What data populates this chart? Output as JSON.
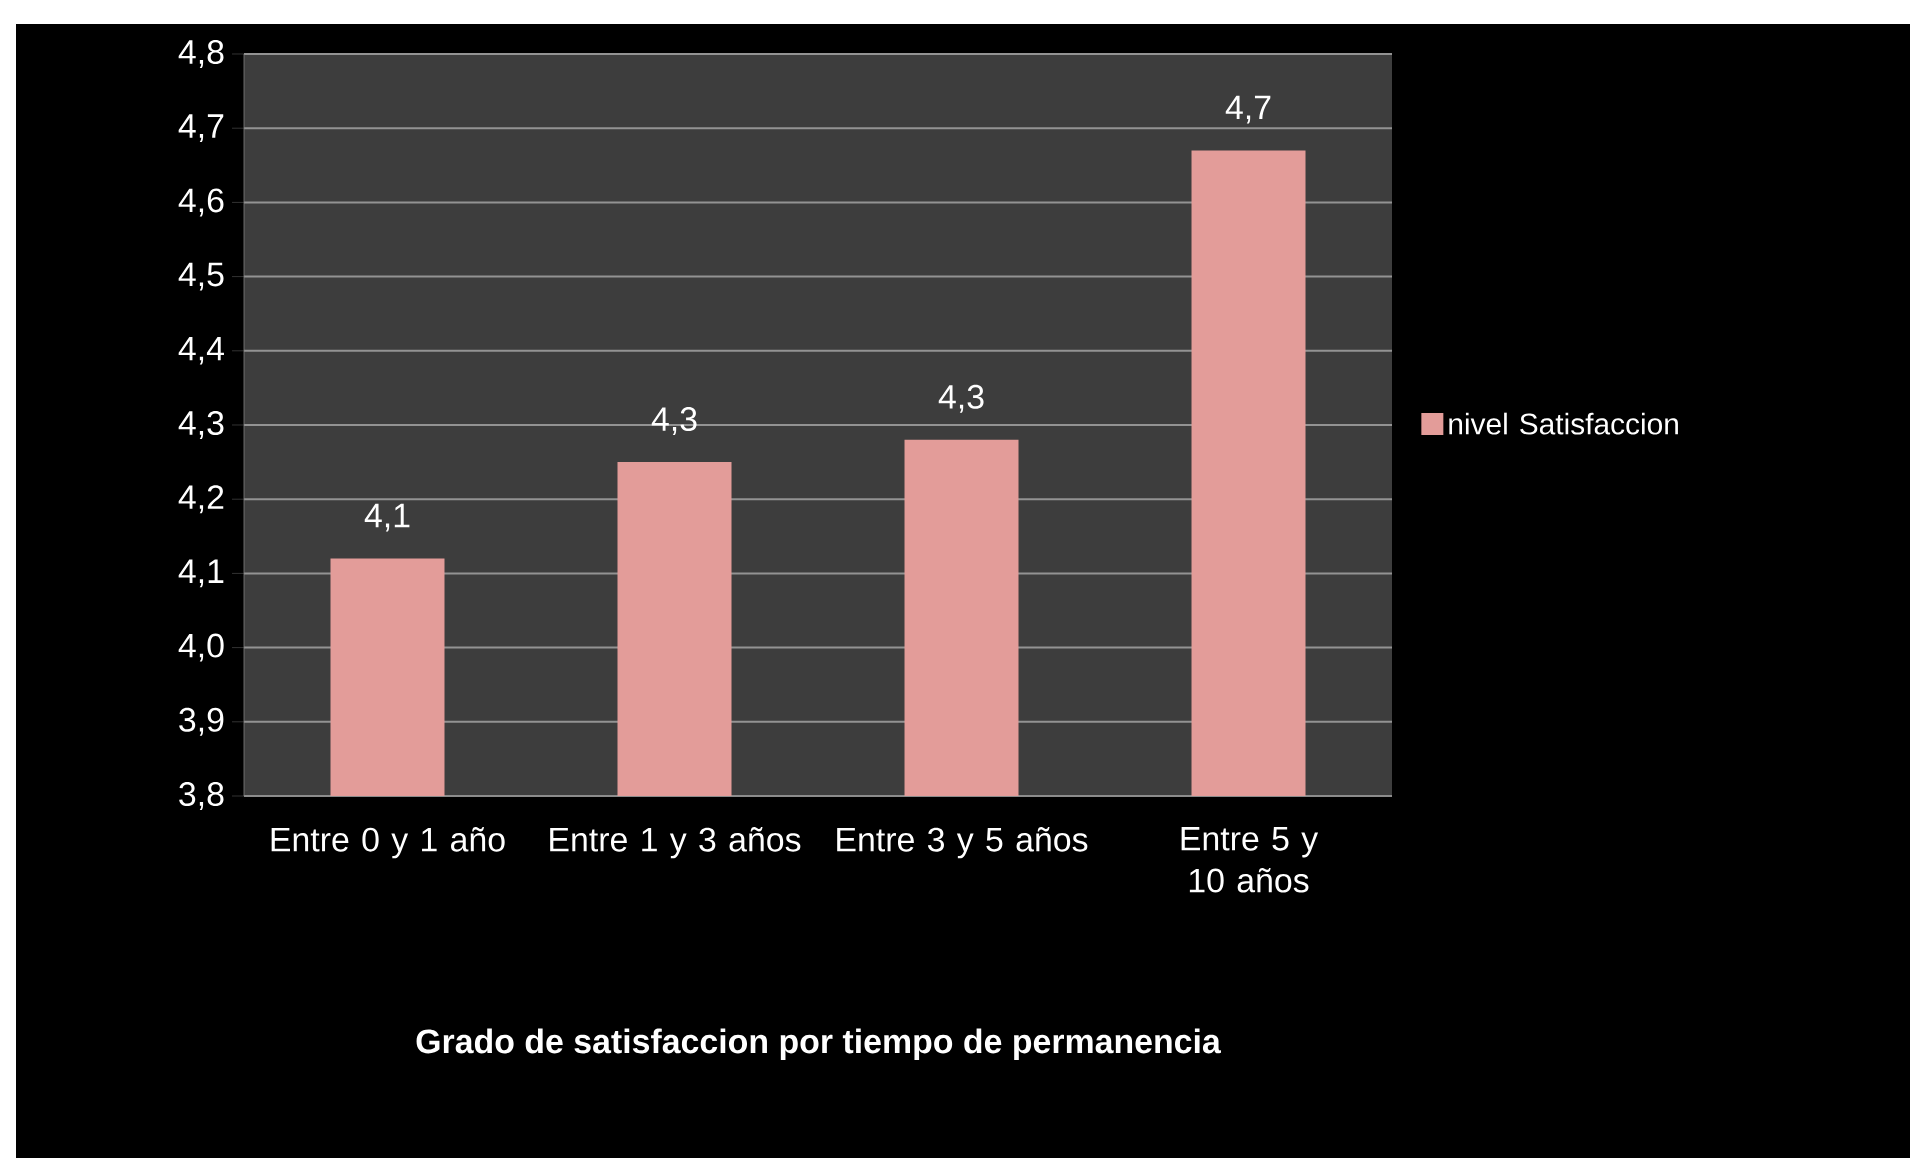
{
  "chart_data": {
    "type": "bar",
    "title": "Grado de satisfaccion por tiempo de permanencia",
    "categories": [
      "Entre 0 y 1 año",
      "Entre 1 y 3 años",
      "Entre 3 y 5 años",
      "Entre 5 y 10 años"
    ],
    "series": [
      {
        "name": "nivel Satisfaccion",
        "color": "#e39c99",
        "values": [
          4.12,
          4.25,
          4.28,
          4.67
        ],
        "value_labels": [
          "4,1",
          "4,3",
          "4,3",
          "4,7"
        ]
      }
    ],
    "ylim": [
      3.8,
      4.8
    ],
    "yticks": [
      {
        "value": 3.8,
        "label": "3,8"
      },
      {
        "value": 3.9,
        "label": "3,9"
      },
      {
        "value": 4.0,
        "label": "4,0"
      },
      {
        "value": 4.1,
        "label": "4,1"
      },
      {
        "value": 4.2,
        "label": "4,2"
      },
      {
        "value": 4.3,
        "label": "4,3"
      },
      {
        "value": 4.4,
        "label": "4,4"
      },
      {
        "value": 4.5,
        "label": "4,5"
      },
      {
        "value": 4.6,
        "label": "4,6"
      },
      {
        "value": 4.7,
        "label": "4,7"
      },
      {
        "value": 4.8,
        "label": "4,8"
      }
    ],
    "grid": "y",
    "legend": "right"
  }
}
